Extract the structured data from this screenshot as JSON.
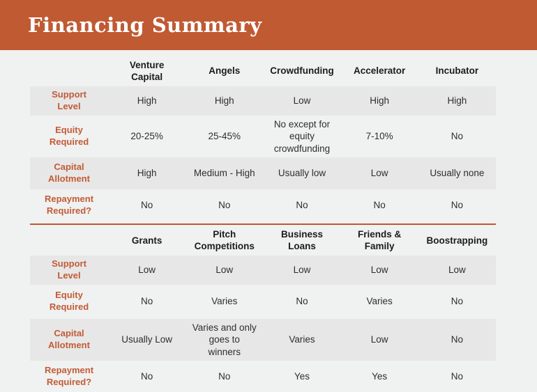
{
  "header": {
    "title": "Financing Summary"
  },
  "colors": {
    "banner": "#c05a33",
    "row_label": "#c25b36",
    "stripe": "#e7e7e7",
    "page_background": "#f0f1f1",
    "divider": "#c0572e",
    "column_header_text": "#1c1c1c",
    "cell_text": "#2e2e2e"
  },
  "chart_data": {
    "type": "table",
    "title": "Financing Summary",
    "row_labels": [
      "Support Level",
      "Equity Required",
      "Capital Allotment",
      "Repayment Required?"
    ],
    "sections": [
      {
        "columns": [
          "Venture Capital",
          "Angels",
          "Crowdfunding",
          "Accelerator",
          "Incubator"
        ],
        "rows": [
          {
            "label": "Support Level",
            "values": [
              "High",
              "High",
              "Low",
              "High",
              "High"
            ]
          },
          {
            "label": "Equity Required",
            "values": [
              "20-25%",
              "25-45%",
              "No except for equity crowdfunding",
              "7-10%",
              "No"
            ]
          },
          {
            "label": "Capital Allotment",
            "values": [
              "High",
              "Medium - High",
              "Usually low",
              "Low",
              "Usually none"
            ]
          },
          {
            "label": "Repayment Required?",
            "values": [
              "No",
              "No",
              "No",
              "No",
              "No"
            ]
          }
        ]
      },
      {
        "columns": [
          "Grants",
          "Pitch Competitions",
          "Business Loans",
          "Friends & Family",
          "Boostrapping"
        ],
        "rows": [
          {
            "label": "Support Level",
            "values": [
              "Low",
              "Low",
              "Low",
              "Low",
              "Low"
            ]
          },
          {
            "label": "Equity Required",
            "values": [
              "No",
              "Varies",
              "No",
              "Varies",
              "No"
            ]
          },
          {
            "label": "Capital Allotment",
            "values": [
              "Usually Low",
              "Varies and only goes to winners",
              "Varies",
              "Low",
              "No"
            ]
          },
          {
            "label": "Repayment Required?",
            "values": [
              "No",
              "No",
              "Yes",
              "Yes",
              "No"
            ]
          }
        ]
      }
    ]
  }
}
